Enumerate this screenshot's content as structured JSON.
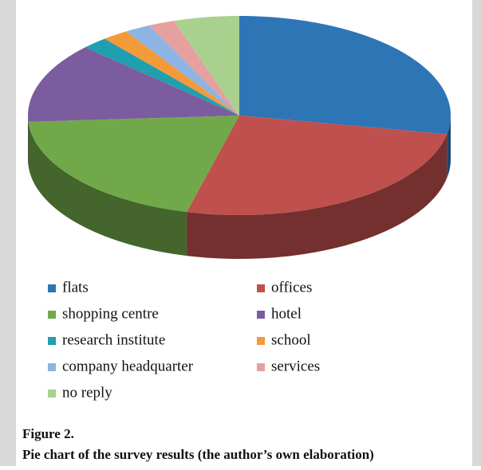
{
  "chart_data": {
    "type": "pie",
    "categories": [
      "flats",
      "offices",
      "shopping centre",
      "hotel",
      "research institute",
      "school",
      "company headquarter",
      "services",
      "no reply"
    ],
    "values": [
      28,
      26,
      20,
      13,
      2,
      2,
      2,
      2,
      5
    ],
    "colors": [
      "#2e75b6",
      "#c0504d",
      "#71a94a",
      "#7b5c9e",
      "#1f9fb0",
      "#f39a3a",
      "#8eb4e3",
      "#e6a0a0",
      "#a9d18e"
    ],
    "legend": "bottom"
  },
  "figure": {
    "label": "Figure 2.",
    "caption": "Pie chart of the survey results (the author’s own elaboration)"
  }
}
